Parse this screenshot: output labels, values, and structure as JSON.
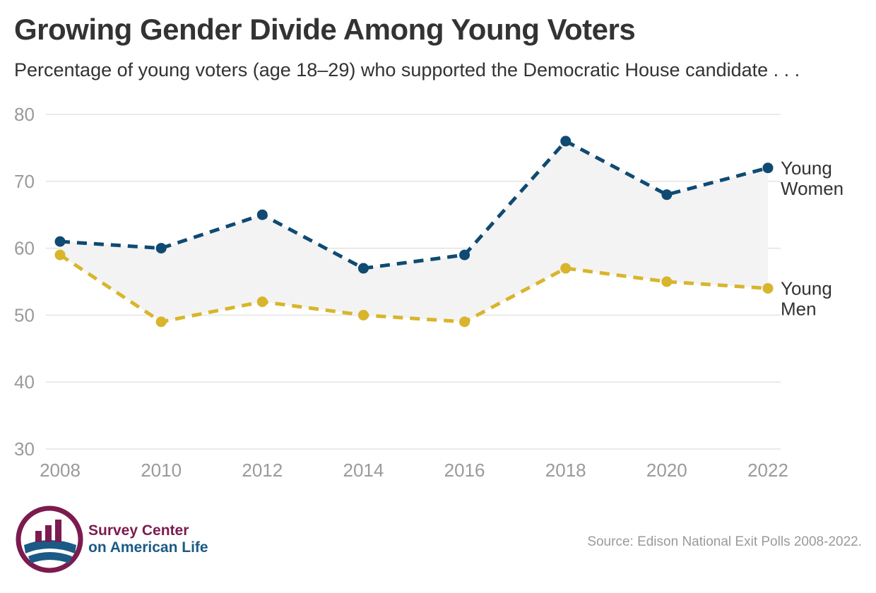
{
  "header": {
    "title": "Growing Gender Divide Among Young Voters",
    "subtitle": "Percentage of young voters (age 18–29) who supported the Democratic House candidate . . ."
  },
  "footer": {
    "source": "Source: Edison National Exit Polls 2008-2022.",
    "org_line1": "Survey Center",
    "org_line2": "on American Life"
  },
  "colors": {
    "women": "#0f4a72",
    "men": "#d8b52c",
    "fill": "#f3f3f3",
    "grid": "#e3e3e3",
    "brand_maroon": "#7c1b4f",
    "brand_blue": "#1b5a87"
  },
  "chart_data": {
    "type": "line",
    "title": "Growing Gender Divide Among Young Voters",
    "subtitle": "Percentage of young voters (age 18–29) who supported the Democratic House candidate . . .",
    "x": [
      "2008",
      "2010",
      "2012",
      "2014",
      "2016",
      "2018",
      "2020",
      "2022"
    ],
    "yticks": [
      30,
      40,
      50,
      60,
      70,
      80
    ],
    "ylim": [
      30,
      80
    ],
    "grid": true,
    "series": [
      {
        "name": "Young Women",
        "label_lines": [
          "Young",
          "Women"
        ],
        "values": [
          61,
          60,
          65,
          57,
          59,
          76,
          68,
          72
        ],
        "line": "dashed"
      },
      {
        "name": "Young Men",
        "label_lines": [
          "Young",
          "Men"
        ],
        "values": [
          59,
          49,
          52,
          50,
          49,
          57,
          55,
          54
        ],
        "line": "dashed"
      }
    ],
    "shaded_gap_between_series": true
  }
}
